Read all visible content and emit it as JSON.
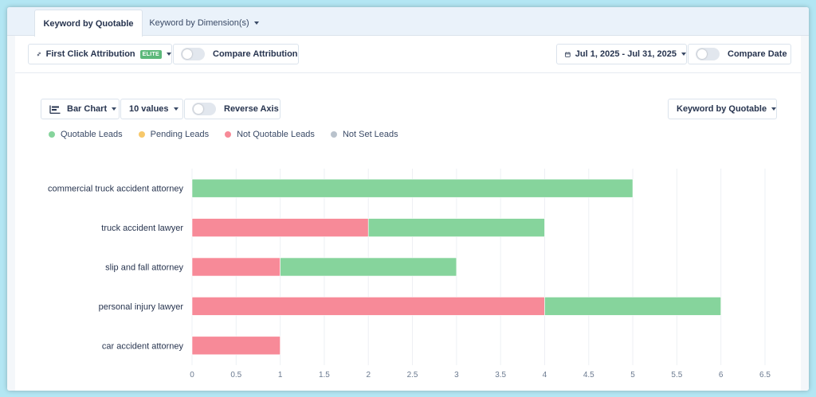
{
  "tabs": [
    {
      "label": "Keyword by Quotable",
      "active": true
    },
    {
      "label": "Keyword by Dimension(s)",
      "active": false
    }
  ],
  "toolbar": {
    "attribution_label": "First Click Attribution",
    "attribution_badge": "ELITE",
    "compare_attribution_label": "Compare Attribution",
    "date_range": "Jul 1, 2025 - Jul 31, 2025",
    "compare_date_label": "Compare Date"
  },
  "chart_controls": {
    "chart_type": "Bar Chart",
    "values_count": "10 values",
    "reverse_axis_label": "Reverse Axis",
    "group_by": "Keyword by Quotable"
  },
  "legend": [
    {
      "label": "Quotable Leads",
      "color": "#86d49c"
    },
    {
      "label": "Pending Leads",
      "color": "#f7c86a"
    },
    {
      "label": "Not Quotable Leads",
      "color": "#f78a98"
    },
    {
      "label": "Not Set Leads",
      "color": "#b9c2cc"
    }
  ],
  "chart_data": {
    "type": "bar",
    "orientation": "horizontal",
    "stacked": true,
    "categories": [
      "commercial truck accident attorney",
      "truck accident lawyer",
      "slip and fall attorney",
      "personal injury lawyer",
      "car accident attorney"
    ],
    "series": [
      {
        "name": "Not Quotable Leads",
        "color": "#f78a98",
        "values": [
          0,
          2,
          1,
          4,
          1
        ]
      },
      {
        "name": "Quotable Leads",
        "color": "#86d49c",
        "values": [
          5,
          2,
          2,
          2,
          0
        ]
      }
    ],
    "xlim": [
      0,
      6.5
    ],
    "xticks": [
      "0",
      "0.5",
      "1",
      "1.5",
      "2",
      "2.5",
      "3",
      "3.5",
      "4",
      "4.5",
      "5",
      "5.5",
      "6",
      "6.5"
    ],
    "grid": true,
    "legend_position": "top-left"
  }
}
